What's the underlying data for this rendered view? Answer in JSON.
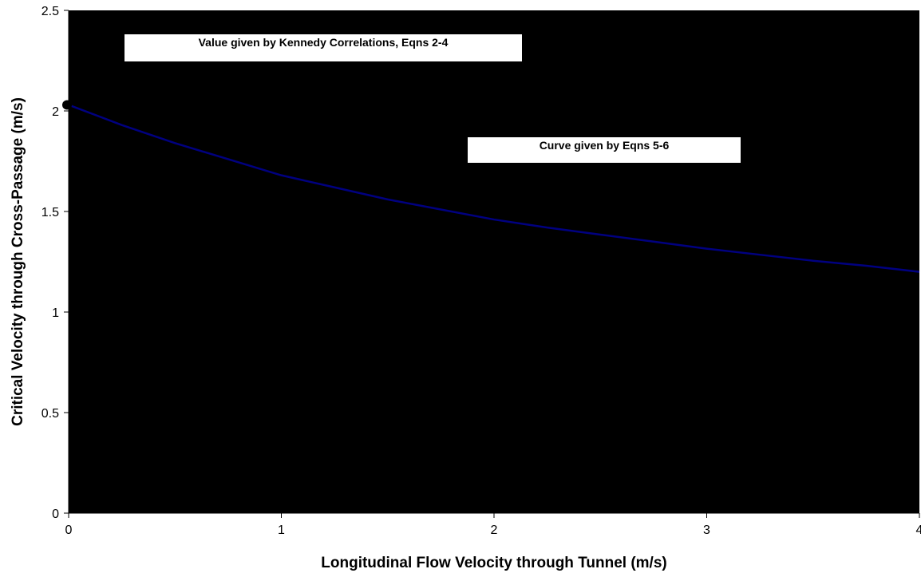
{
  "chart_data": {
    "type": "line",
    "title": "",
    "xlabel": "Longitudinal Flow Velocity through Tunnel (m/s)",
    "ylabel": "Critical Velocity through Cross-Passage (m/s)",
    "xlim": [
      0,
      4
    ],
    "ylim": [
      0,
      2.5
    ],
    "x_ticks": [
      "0",
      "1",
      "2",
      "3",
      "4"
    ],
    "y_ticks": [
      "0",
      "0.5",
      "1",
      "1.5",
      "2",
      "2.5"
    ],
    "grid": false,
    "legend": "none",
    "plot_background": "#000000",
    "series": [
      {
        "color": "#000080",
        "x": [
          0,
          0.25,
          0.5,
          0.75,
          1.0,
          1.25,
          1.5,
          1.75,
          2.0,
          2.25,
          2.5,
          2.75,
          3.0,
          3.25,
          3.5,
          3.75,
          4.0
        ],
        "values": [
          2.03,
          1.93,
          1.84,
          1.76,
          1.68,
          1.62,
          1.56,
          1.51,
          1.46,
          1.42,
          1.385,
          1.35,
          1.315,
          1.285,
          1.255,
          1.23,
          1.2
        ]
      }
    ],
    "points": [
      {
        "x": 0,
        "y": 2.03,
        "color": "#000000"
      }
    ],
    "annotations": [
      {
        "text": "Value given by Kennedy Correlations, Eqns 2-4"
      },
      {
        "text": "Curve given by Eqns 5-6"
      }
    ]
  }
}
